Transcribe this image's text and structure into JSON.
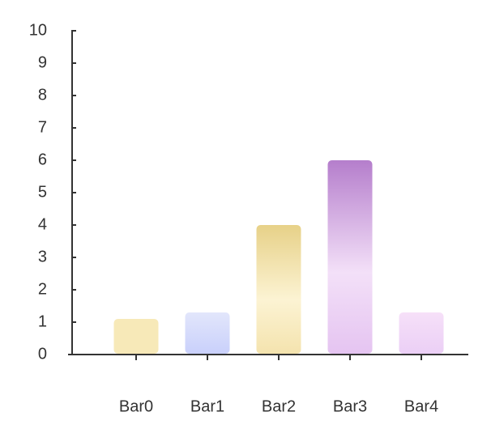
{
  "chart_data": {
    "type": "bar",
    "title": "",
    "xlabel": "",
    "ylabel": "",
    "categories": [
      "Bar0",
      "Bar1",
      "Bar2",
      "Bar3",
      "Bar4"
    ],
    "values": [
      1.1,
      1.3,
      4.0,
      6.0,
      1.3
    ],
    "ylim": [
      0,
      10
    ],
    "yticks": [
      "0",
      "1",
      "2",
      "3",
      "4",
      "5",
      "6",
      "7",
      "8",
      "9",
      "10"
    ],
    "grid": false,
    "legend": "none",
    "bar_gradients": [
      {
        "top": "#f7e9b8",
        "bottom": "#f7e9b8"
      },
      {
        "top": "#e2e6fb",
        "bottom": "#c9d0fb"
      },
      {
        "top": "#e7d188",
        "middle": "#fcf3d3",
        "bottom": "#f4e3ae"
      },
      {
        "top": "#b57ecc",
        "middle": "#f3e0f8",
        "bottom": "#e5c4f1"
      },
      {
        "top": "#f6e0f8",
        "bottom": "#ebcff6"
      }
    ],
    "axis_color": "#333333"
  }
}
